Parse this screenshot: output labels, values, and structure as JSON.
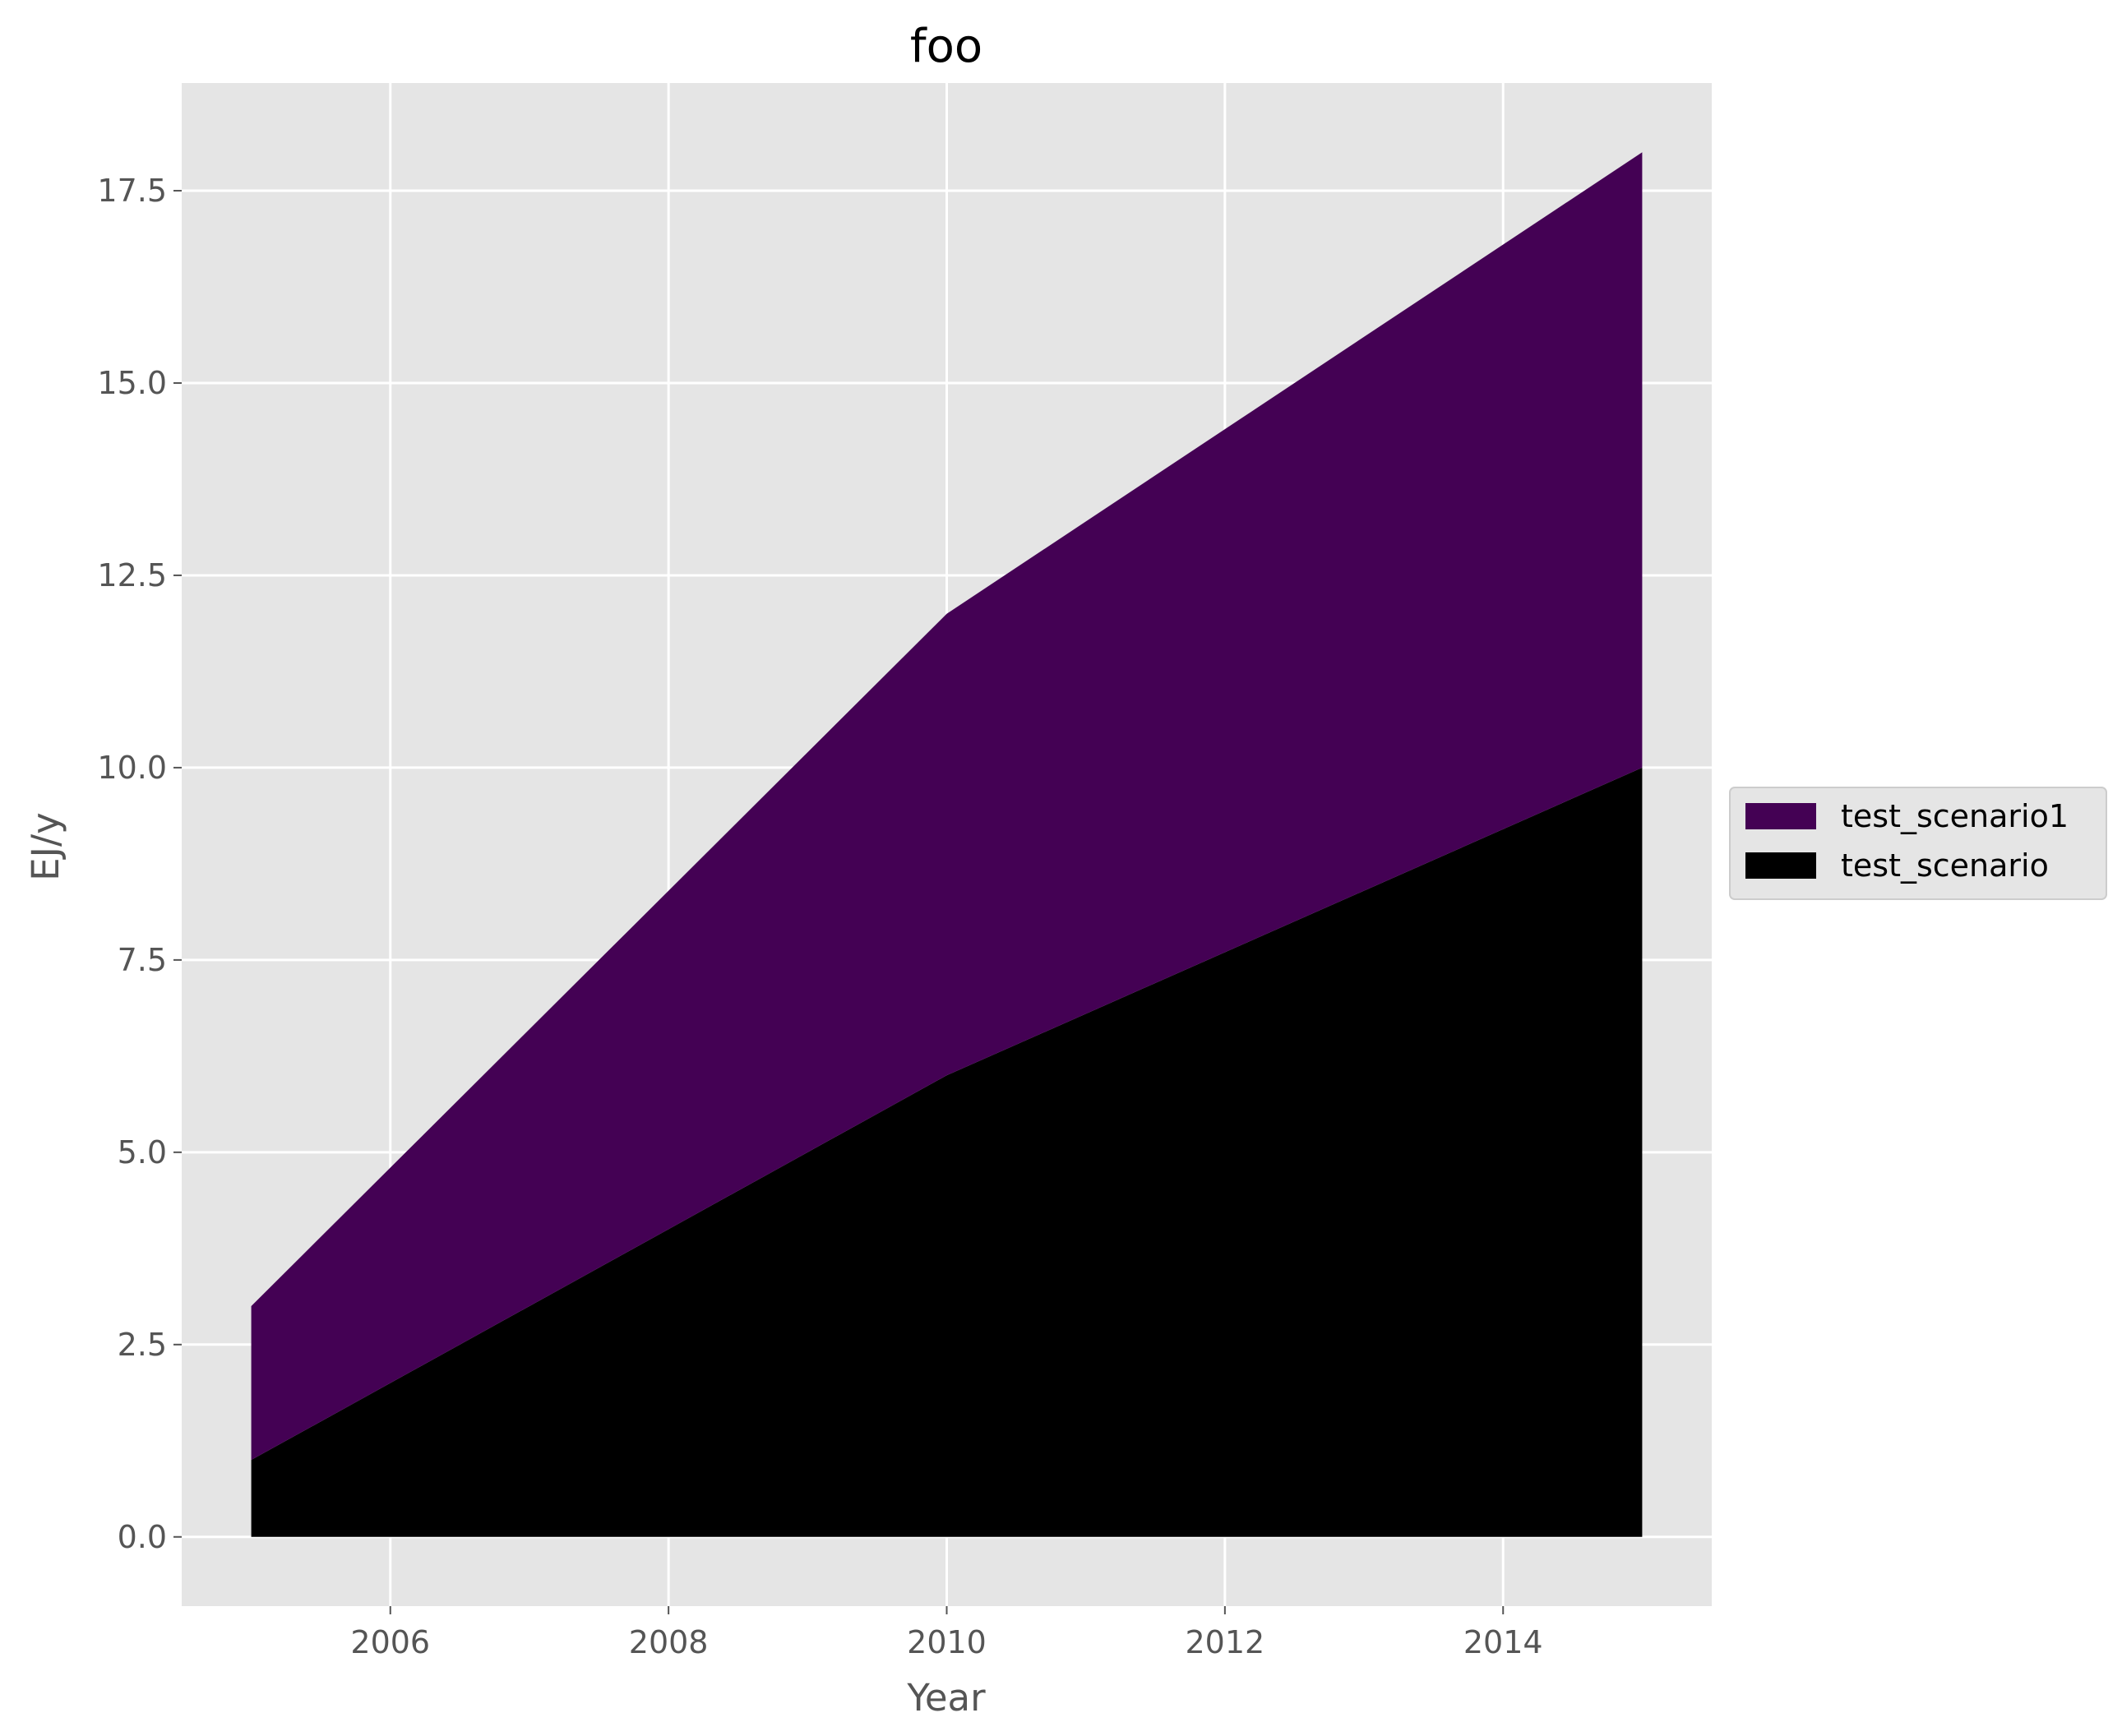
{
  "chart_data": {
    "type": "area",
    "stacked": true,
    "title": "foo",
    "xlabel": "Year",
    "ylabel": "EJ/y",
    "x": [
      2005,
      2010,
      2015
    ],
    "series": [
      {
        "name": "test_scenario",
        "values": [
          1,
          6,
          10
        ],
        "color": "#000000"
      },
      {
        "name": "test_scenario1",
        "values": [
          2,
          6,
          8
        ],
        "color": "#440154"
      }
    ],
    "xlim": [
      2004.5,
      2015.5
    ],
    "ylim": [
      -0.9,
      18.9
    ],
    "xticks": [
      2006,
      2008,
      2010,
      2012,
      2014
    ],
    "xtick_labels": [
      "2006",
      "2008",
      "2010",
      "2012",
      "2014"
    ],
    "yticks": [
      0,
      2.5,
      5,
      7.5,
      10,
      12.5,
      15,
      17.5
    ],
    "ytick_labels": [
      "0.0",
      "2.5",
      "5.0",
      "7.5",
      "10.0",
      "12.5",
      "15.0",
      "17.5"
    ],
    "grid": true,
    "legend_position": "right",
    "legend_order": [
      "test_scenario1",
      "test_scenario"
    ],
    "background_color": "#e5e5e5",
    "grid_color": "#ffffff"
  }
}
